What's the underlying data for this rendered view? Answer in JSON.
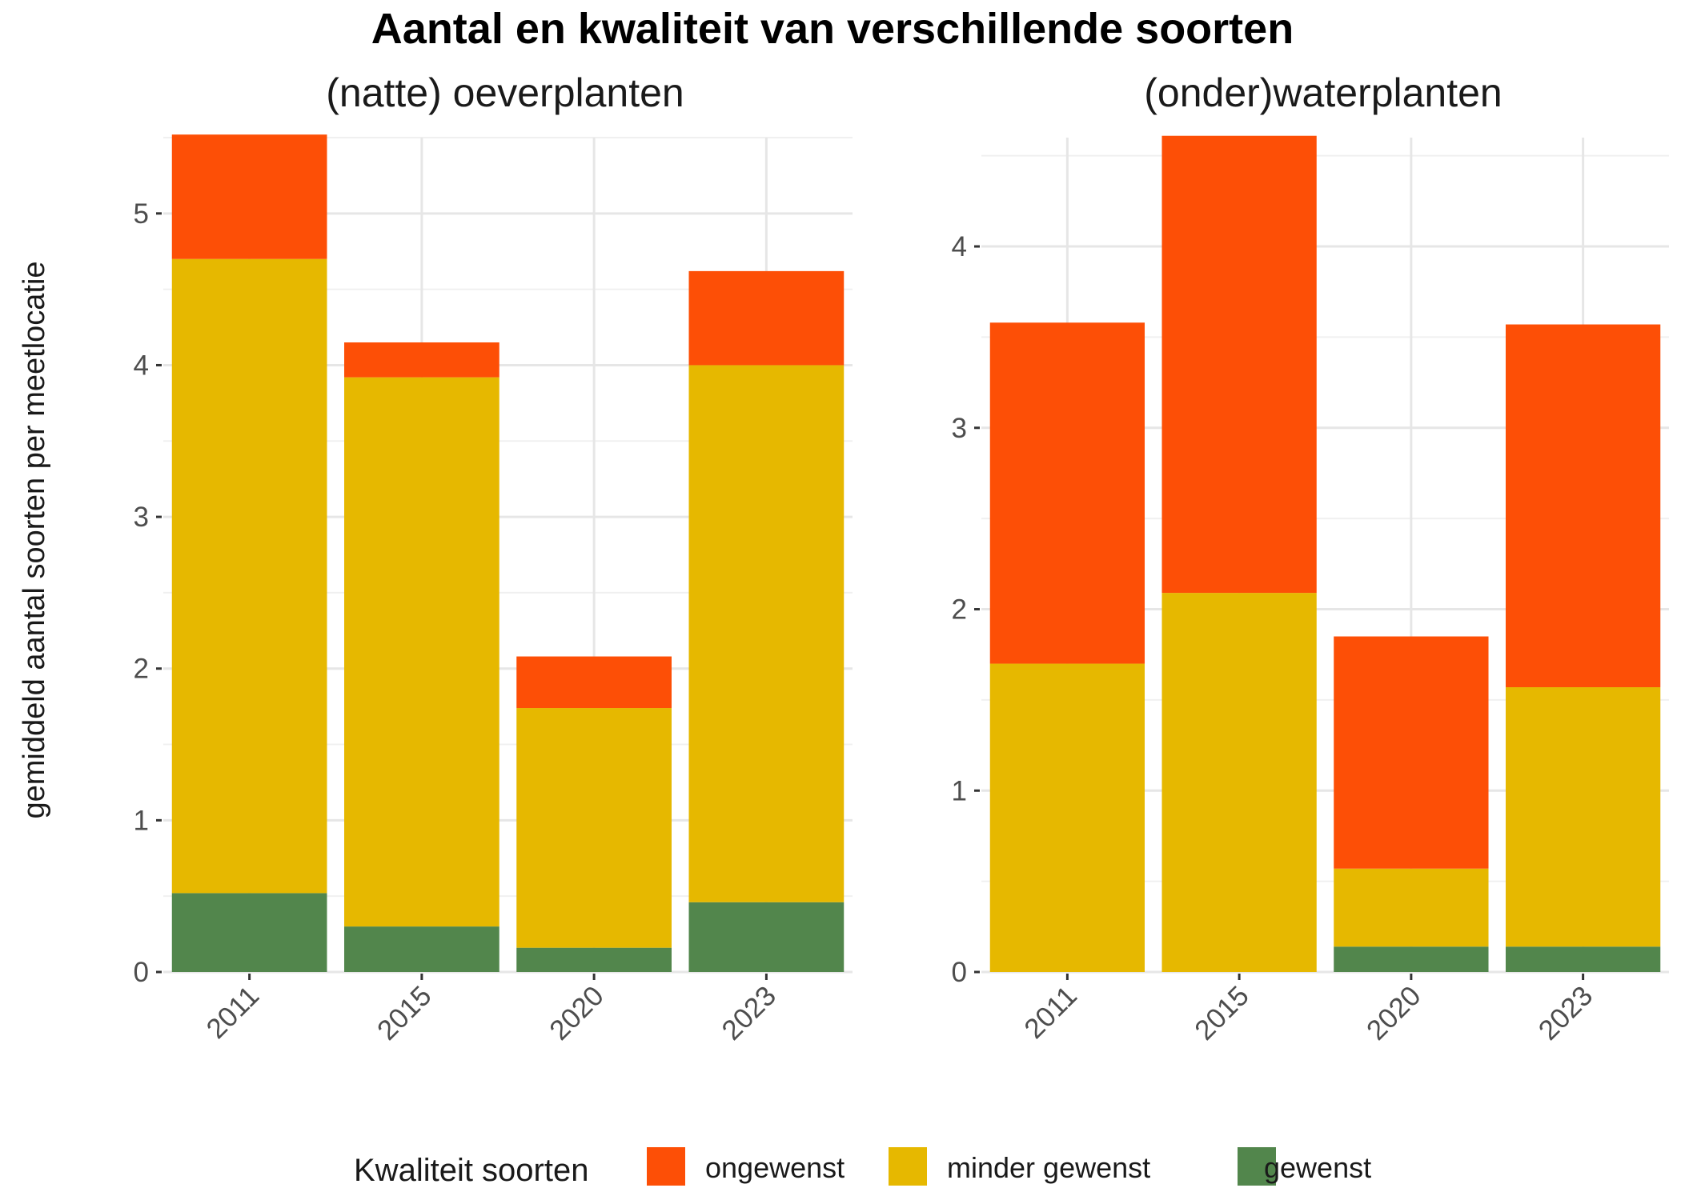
{
  "chart_data": {
    "type": "bar",
    "stacked": true,
    "title": "Aantal en kwaliteit van verschillende soorten",
    "ylabel": "gemiddeld aantal soorten per meetlocatie",
    "categories": [
      "2011",
      "2015",
      "2020",
      "2023"
    ],
    "grid": true,
    "legend": {
      "title": "Kwaliteit soorten",
      "position": "bottom",
      "entries": [
        {
          "name": "ongewenst",
          "color": "#fd4f06"
        },
        {
          "name": "minder gewenst",
          "color": "#e6b800"
        },
        {
          "name": "gewenst",
          "color": "#52864c"
        }
      ]
    },
    "panels": [
      {
        "title": "(natte) oeverplanten",
        "ylim": [
          0,
          5.5
        ],
        "yticks": [
          0,
          1,
          2,
          3,
          4,
          5
        ],
        "series": [
          {
            "name": "gewenst",
            "values": [
              0.52,
              0.3,
              0.16,
              0.46
            ]
          },
          {
            "name": "minder gewenst",
            "values": [
              4.18,
              3.62,
              1.58,
              3.54
            ]
          },
          {
            "name": "ongewenst",
            "values": [
              0.82,
              0.23,
              0.34,
              0.62
            ]
          }
        ]
      },
      {
        "title": "(onder)waterplanten",
        "ylim": [
          0,
          4.6
        ],
        "yticks": [
          0,
          1,
          2,
          3,
          4
        ],
        "series": [
          {
            "name": "gewenst",
            "values": [
              0,
              0,
              0.14,
              0.14
            ]
          },
          {
            "name": "minder gewenst",
            "values": [
              1.7,
              2.09,
              0.43,
              1.43
            ]
          },
          {
            "name": "ongewenst",
            "values": [
              1.88,
              2.52,
              1.28,
              2.0
            ]
          }
        ]
      }
    ]
  }
}
